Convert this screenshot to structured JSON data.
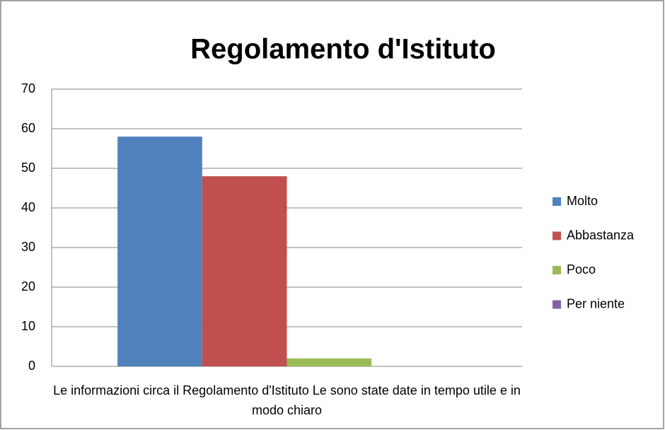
{
  "chart_data": {
    "type": "bar",
    "title": "Regolamento d'Istituto",
    "categories": [
      "Le informazioni circa il Regolamento d'Istituto Le sono state date in tempo utile e in modo chiaro"
    ],
    "series": [
      {
        "name": "Molto",
        "color": "#4f81bd",
        "values": [
          58
        ]
      },
      {
        "name": "Abbastanza",
        "color": "#c0504d",
        "values": [
          48
        ]
      },
      {
        "name": "Poco",
        "color": "#9bbb59",
        "values": [
          2
        ]
      },
      {
        "name": "Per niente",
        "color": "#8064a2",
        "values": [
          0
        ]
      }
    ],
    "ylim": [
      0,
      70
    ],
    "yticks": [
      0,
      10,
      20,
      30,
      40,
      50,
      60,
      70
    ],
    "grid": true,
    "legend": "right"
  }
}
